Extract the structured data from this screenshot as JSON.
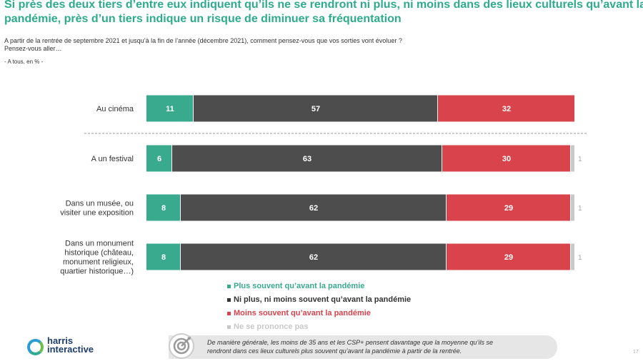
{
  "header": {
    "title_line1": "Si près des deux tiers d’entre eux indiquent qu’ils ne se rendront ni plus, ni moins dans des lieux culturels qu’avant la",
    "title_line2": "pandémie, près d’un tiers indique un risque de diminuer sa fréquentation"
  },
  "question": {
    "line1": "A partir de la rentrée de septembre 2021 et jusqu’à la fin de l’année (décembre 2021), comment pensez-vous que vos sorties vont évoluer ?",
    "line2": "Pensez-vous aller…"
  },
  "base": "- A tous, en % -",
  "chart_data": {
    "type": "bar",
    "orientation": "horizontal",
    "stacked": true,
    "unit": "%",
    "xlim": [
      0,
      100
    ],
    "categories": [
      {
        "lines": [
          "Au cinéma"
        ]
      },
      {
        "lines": [
          "A un festival"
        ]
      },
      {
        "lines": [
          "Dans un musée, ou",
          "visiter une exposition"
        ]
      },
      {
        "lines": [
          "Dans un monument",
          "historique (château,",
          "monument religieux,",
          "quartier historique…)"
        ]
      }
    ],
    "series": [
      {
        "name": "Plus souvent qu’avant la pandémie",
        "color": "#3aaa8f",
        "values": [
          11,
          6,
          8,
          8
        ]
      },
      {
        "name": "Ni plus, ni moins souvent qu’avant la pandémie",
        "color": "#4d4d4d",
        "values": [
          57,
          63,
          62,
          62
        ]
      },
      {
        "name": "Moins souvent qu’avant la pandémie",
        "color": "#d9434b",
        "values": [
          32,
          30,
          29,
          29
        ]
      },
      {
        "name": "Ne se prononce pas",
        "color": "#c8c8c8",
        "values": [
          0,
          1,
          1,
          1
        ]
      }
    ]
  },
  "legend": [
    {
      "label": "Plus souvent qu’avant la pandémie",
      "color": "#3aaa8f"
    },
    {
      "label": "Ni plus, ni moins souvent qu’avant la pandémie",
      "color": "#333333"
    },
    {
      "label": "Moins souvent qu’avant la pandémie",
      "color": "#d9434b"
    },
    {
      "label": "Ne se prononce pas",
      "color": "#c8c8c8"
    }
  ],
  "logo": {
    "line1": "harris",
    "line2": "interactive"
  },
  "note": {
    "line1": "De manière générale, les moins de 35 ans et les CSP+ pensent davantage que la moyenne qu’ils se",
    "line2": "rendront dans ces lieux culturels plus souvent qu’avant la pandémie à partir de la rentrée."
  },
  "page_number": "17"
}
